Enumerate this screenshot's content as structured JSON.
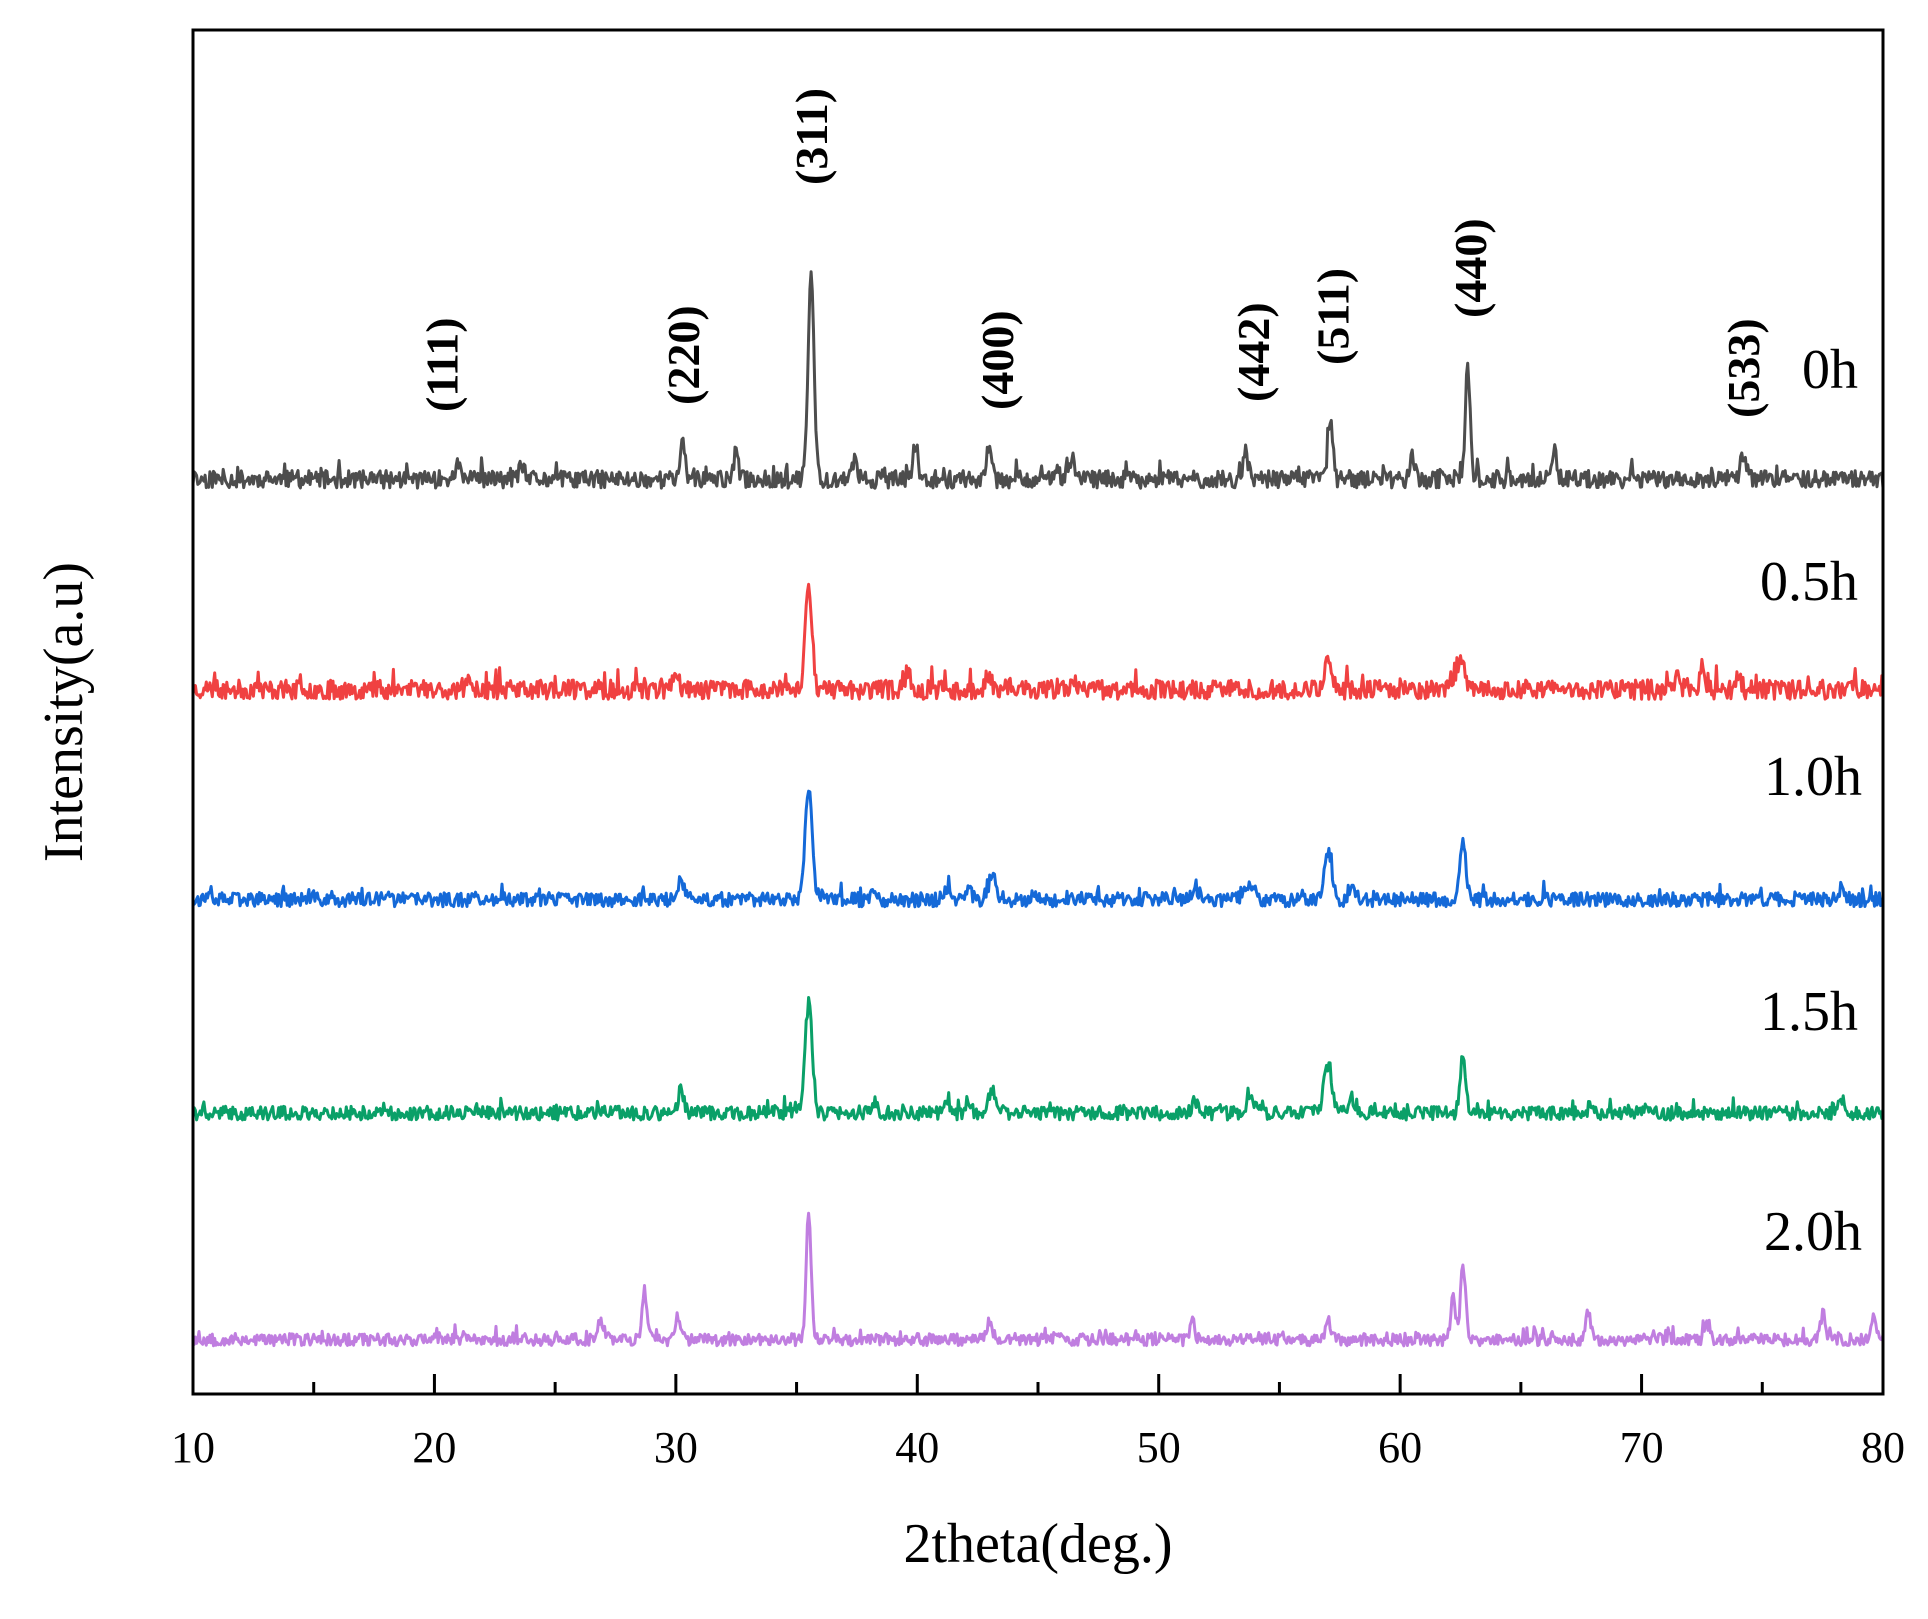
{
  "chart_data": {
    "type": "line",
    "title": "",
    "xlabel": "2theta(deg.)",
    "ylabel": "Intensity(a.u)",
    "xlim": [
      10,
      80
    ],
    "x_ticks": [
      10,
      20,
      30,
      40,
      50,
      60,
      70,
      80
    ],
    "y_ticks": [],
    "grid": false,
    "legend": "inline labels at right",
    "note": "stacked offset XRD patterns; intensity in arbitrary units (baseline offset 0-100 per pattern)",
    "peak_labels": [
      {
        "label": "(111)",
        "x": 20.3
      },
      {
        "label": "(220)",
        "x": 30.3
      },
      {
        "label": "(311)",
        "x": 35.6
      },
      {
        "label": "(400)",
        "x": 43.3
      },
      {
        "label": "(442)",
        "x": 53.9
      },
      {
        "label": "(511)",
        "x": 57.2
      },
      {
        "label": "(440)",
        "x": 62.9
      },
      {
        "label": "(533)",
        "x": 74.2
      }
    ],
    "series": [
      {
        "name": "0h",
        "color": "#4d4d4d",
        "offset": 4,
        "noise": 6,
        "seed": 11,
        "peaks": [
          [
            21.0,
            5,
            0.12
          ],
          [
            23.6,
            4,
            0.12
          ],
          [
            30.3,
            12,
            0.1
          ],
          [
            32.5,
            9,
            0.1
          ],
          [
            35.6,
            70,
            0.12
          ],
          [
            37.4,
            6,
            0.1
          ],
          [
            39.9,
            9,
            0.1
          ],
          [
            43.0,
            13,
            0.1
          ],
          [
            46.4,
            6,
            0.1
          ],
          [
            53.6,
            9,
            0.1
          ],
          [
            57.1,
            21,
            0.1
          ],
          [
            60.5,
            9,
            0.1
          ],
          [
            62.8,
            37,
            0.1
          ],
          [
            66.4,
            8,
            0.1
          ],
          [
            74.2,
            8,
            0.1
          ]
        ]
      },
      {
        "name": "0.5h",
        "color": "#f04141",
        "offset": 3,
        "noise": 10,
        "seed": 23,
        "peaks": [
          [
            21.5,
            5,
            0.12
          ],
          [
            30.0,
            10,
            0.12
          ],
          [
            35.5,
            55,
            0.14
          ],
          [
            39.6,
            10,
            0.1
          ],
          [
            43.0,
            8,
            0.1
          ],
          [
            46.5,
            6,
            0.1
          ],
          [
            57.0,
            16,
            0.16
          ],
          [
            62.5,
            18,
            0.14
          ],
          [
            71.5,
            12,
            0.1
          ],
          [
            72.5,
            12,
            0.1
          ],
          [
            74.0,
            10,
            0.1
          ]
        ]
      },
      {
        "name": "1.0h",
        "color": "#1469d8",
        "offset": 4,
        "noise": 7,
        "seed": 37,
        "peaks": [
          [
            30.2,
            11,
            0.12
          ],
          [
            35.5,
            55,
            0.15
          ],
          [
            38.2,
            6,
            0.12
          ],
          [
            41.2,
            6,
            0.12
          ],
          [
            42.1,
            6,
            0.12
          ],
          [
            43.1,
            12,
            0.15
          ],
          [
            51.5,
            6,
            0.14
          ],
          [
            53.8,
            7,
            0.2
          ],
          [
            57.0,
            24,
            0.16
          ],
          [
            58.0,
            8,
            0.12
          ],
          [
            62.6,
            30,
            0.12
          ],
          [
            78.3,
            6,
            0.12
          ]
        ]
      },
      {
        "name": "1.5h",
        "color": "#0aa068",
        "offset": 4,
        "noise": 7,
        "seed": 41,
        "peaks": [
          [
            30.2,
            11,
            0.12
          ],
          [
            35.5,
            55,
            0.15
          ],
          [
            38.2,
            6,
            0.12
          ],
          [
            41.2,
            6,
            0.12
          ],
          [
            42.1,
            6,
            0.12
          ],
          [
            43.1,
            12,
            0.15
          ],
          [
            51.5,
            6,
            0.14
          ],
          [
            53.8,
            7,
            0.2
          ],
          [
            57.0,
            24,
            0.16
          ],
          [
            58.0,
            8,
            0.12
          ],
          [
            62.6,
            30,
            0.12
          ],
          [
            78.3,
            6,
            0.12
          ]
        ]
      },
      {
        "name": "2.0h",
        "color": "#c07ee0",
        "offset": 3,
        "noise": 6,
        "seed": 53,
        "peaks": [
          [
            26.9,
            8,
            0.15
          ],
          [
            28.7,
            24,
            0.1
          ],
          [
            30.1,
            12,
            0.1
          ],
          [
            35.5,
            62,
            0.1
          ],
          [
            43.0,
            10,
            0.1
          ],
          [
            51.4,
            8,
            0.1
          ],
          [
            57.0,
            10,
            0.1
          ],
          [
            62.2,
            20,
            0.1
          ],
          [
            62.6,
            38,
            0.1
          ],
          [
            67.8,
            14,
            0.1
          ],
          [
            72.7,
            8,
            0.1
          ],
          [
            77.5,
            12,
            0.1
          ],
          [
            79.6,
            12,
            0.1
          ]
        ]
      }
    ]
  }
}
